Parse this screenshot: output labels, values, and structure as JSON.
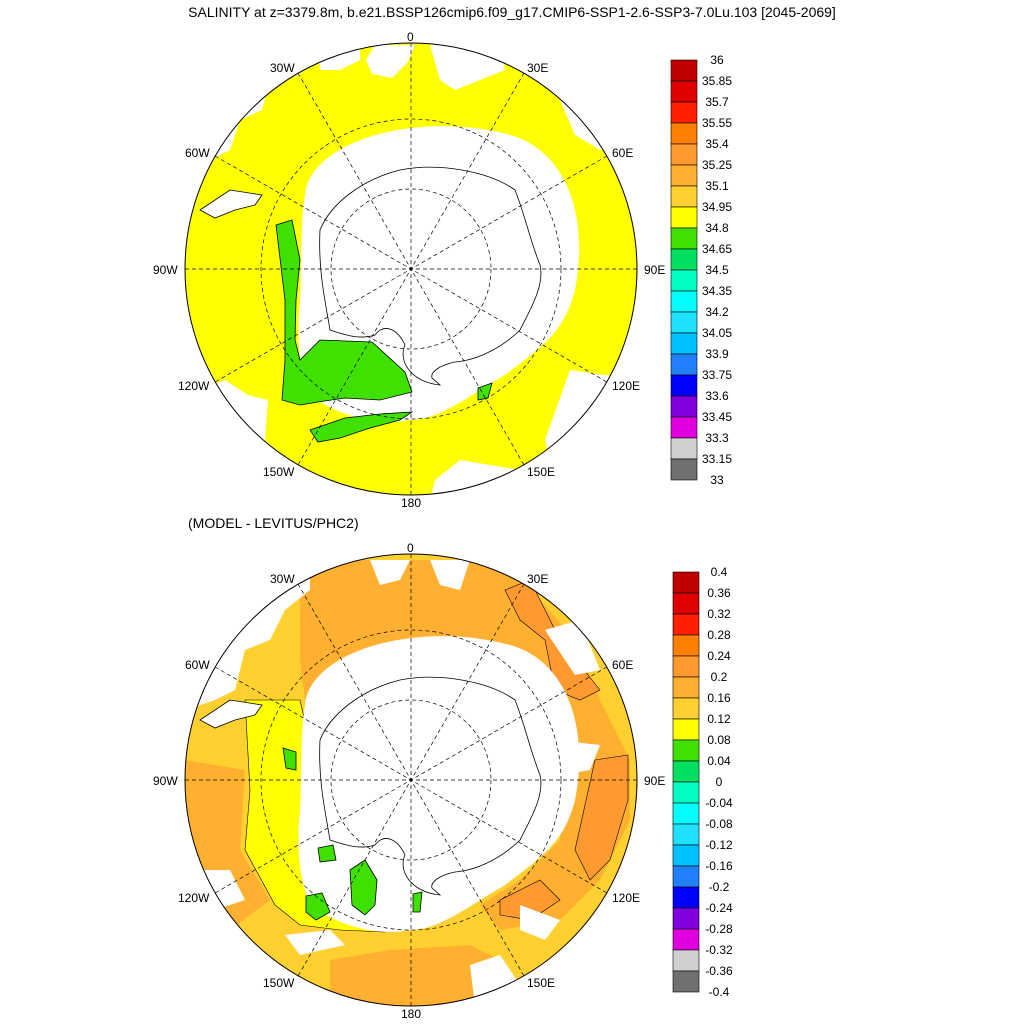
{
  "title": "SALINITY at z=3379.8m, b.e21.BSSP126cmip6.f09_g17.CMIP6-SSP1-2.6-SSP3-7.0Lu.103 [2045-2069]",
  "subtitle": "(MODEL - LEVITUS/PHC2)",
  "lon_labels": {
    "top": "0",
    "top_right": "30E",
    "right_upper": "60E",
    "right": "90E",
    "right_lower": "120E",
    "bottom_right": "150E",
    "bottom": "180",
    "bottom_left": "150W",
    "left_lower": "120W",
    "left": "90W",
    "left_upper": "60W",
    "top_left": "30W"
  },
  "top_colorbar": {
    "labels": [
      "36",
      "35.85",
      "35.7",
      "35.55",
      "35.4",
      "35.25",
      "35.1",
      "34.95",
      "34.8",
      "34.65",
      "34.5",
      "34.35",
      "34.2",
      "34.05",
      "33.9",
      "33.75",
      "33.6",
      "33.45",
      "33.3",
      "33.15",
      "33"
    ],
    "colors": [
      "#c00000",
      "#e00000",
      "#ff2000",
      "#ff8000",
      "#ff9a30",
      "#ffb030",
      "#ffd030",
      "#ffff00",
      "#40e000",
      "#00e060",
      "#00ffc0",
      "#00ffff",
      "#20e0ff",
      "#00c0ff",
      "#2080ff",
      "#0000ff",
      "#8000e0",
      "#e000e0",
      "#d0d0d0",
      "#707070"
    ]
  },
  "bottom_colorbar": {
    "labels": [
      "0.4",
      "0.36",
      "0.32",
      "0.28",
      "0.24",
      "0.2",
      "0.16",
      "0.12",
      "0.08",
      "0.04",
      "0",
      "-0.04",
      "-0.08",
      "-0.12",
      "-0.16",
      "-0.2",
      "-0.24",
      "-0.28",
      "-0.32",
      "-0.36",
      "-0.4"
    ],
    "colors": [
      "#c00000",
      "#e00000",
      "#ff2000",
      "#ff8000",
      "#ff9a30",
      "#ffb030",
      "#ffd030",
      "#ffff00",
      "#40e000",
      "#00e060",
      "#00ffc0",
      "#00ffff",
      "#20e0ff",
      "#00c0ff",
      "#2080ff",
      "#0000ff",
      "#8000e0",
      "#e000e0",
      "#d0d0d0",
      "#707070"
    ]
  }
}
